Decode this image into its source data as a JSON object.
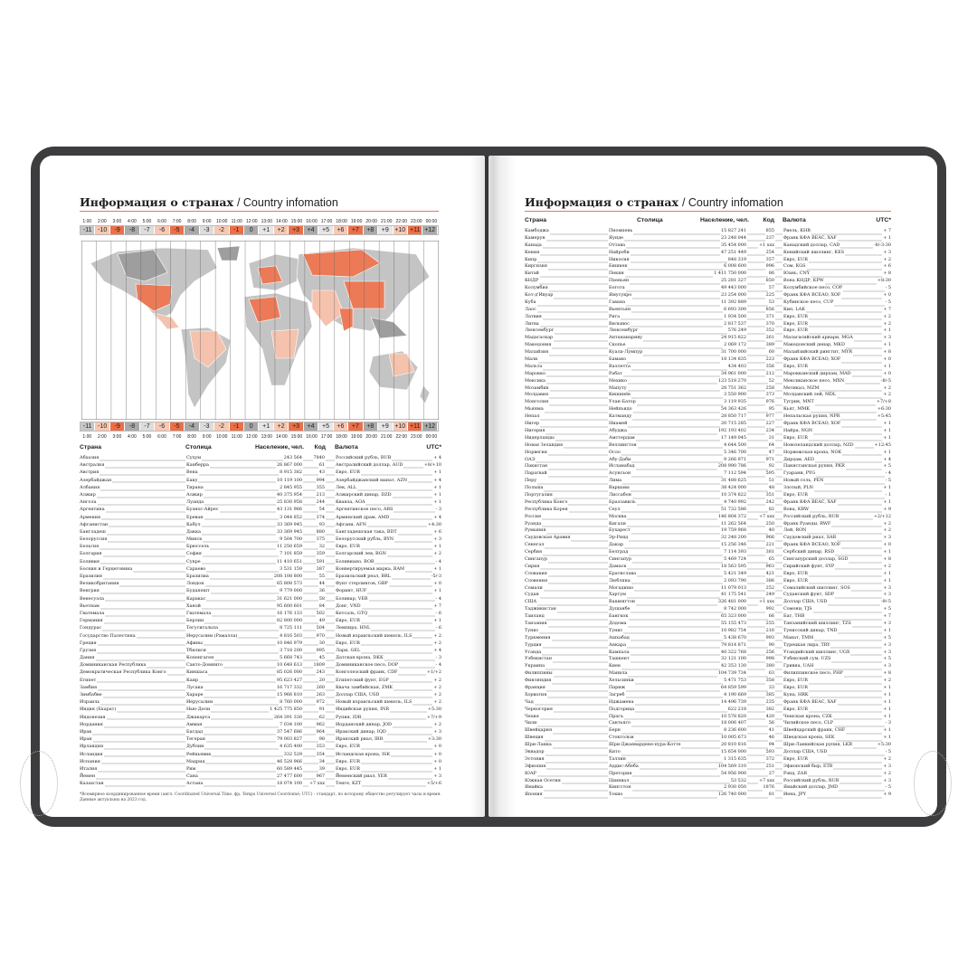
{
  "left_page": {
    "title_ru": "Информация о странах",
    "title_en": "/ Country infomation",
    "times": [
      "1:00",
      "2:00",
      "3:00",
      "4:00",
      "5:00",
      "6:00",
      "7:00",
      "8:00",
      "9:00",
      "10:00",
      "11:00",
      "12:00",
      "13:00",
      "14:00",
      "15:00",
      "16:00",
      "17:00",
      "18:00",
      "19:00",
      "20:00",
      "21:00",
      "22:00",
      "23:00",
      "00:00"
    ],
    "offsets": [
      "-11",
      "-10",
      "-9",
      "-8",
      "-7",
      "-6",
      "-5",
      "-4",
      "-3",
      "-2",
      "-1",
      "0",
      "+1",
      "+2",
      "+3",
      "+4",
      "+5",
      "+6",
      "+7",
      "+8",
      "+9",
      "+10",
      "+11",
      "+12"
    ],
    "offset_colors": [
      "#c6c6c6",
      "#f7c8b3",
      "#ec6f47",
      "#a9a9a9",
      "#dcdcdc",
      "#f7c8b3",
      "#ec6f47",
      "#a9a9a9",
      "#dcdcdc",
      "#f7c8b3",
      "#ec6f47",
      "#a9a9a9",
      "#e6e6e6",
      "#f7c8b3",
      "#ec6f47",
      "#a9a9a9",
      "#e6e6e6",
      "#f7c8b3",
      "#ec6f47",
      "#a9a9a9",
      "#e6e6e6",
      "#f7c8b3",
      "#ec6f47",
      "#a9a9a9"
    ],
    "map_colors": {
      "land_gray": "#c4c4c4",
      "land_dark": "#9e9e9e",
      "orange": "#ec7a57",
      "peach": "#f5c2ad"
    },
    "headers": {
      "country": "Страна",
      "capital": "Столица",
      "population": "Население, чел.",
      "code": "Код",
      "currency": "Валюта",
      "utc": "UTC*"
    },
    "rows": [
      [
        "Абхазия",
        "Сухум",
        "243 564",
        "7840",
        "Российский рубль, RUB",
        "+ 4"
      ],
      [
        "Австралия",
        "Канберра",
        "26 867 000",
        "61",
        "Австралийский доллар, AUD",
        "+8/+10"
      ],
      [
        "Австрия",
        "Вена",
        "8 915 382",
        "43",
        "Евро, EUR",
        "+ 1"
      ],
      [
        "Азербайджан",
        "Баку",
        "10 119 100",
        "994",
        "Азербайджанский манат, AZN",
        "+ 4"
      ],
      [
        "Албания",
        "Тирана",
        "2 845 955",
        "355",
        "Лек, ALL",
        "+ 1"
      ],
      [
        "Алжир",
        "Алжир",
        "40 375 954",
        "213",
        "Алжирский динар, DZD",
        "+ 1"
      ],
      [
        "Ангола",
        "Луанда",
        "25 830 958",
        "244",
        "Кванза, AOA",
        "+ 1"
      ],
      [
        "Аргентина",
        "Буэнос-Айрес",
        "43 131 966",
        "54",
        "Аргентинское песо, ARS",
        "- 3"
      ],
      [
        "Армения",
        "Ереван",
        "3 044 852",
        "374",
        "Армянский драм, AMD",
        "+ 4"
      ],
      [
        "Афганистан",
        "Кабул",
        "33 369 945",
        "93",
        "Афгани, AFN",
        "+4:30"
      ],
      [
        "Бангладеш",
        "Дакка",
        "33 369 945",
        "880",
        "Бангладешская така, BDT",
        "+ 6"
      ],
      [
        "Белоруссия",
        "Минск",
        "9 504 700",
        "375",
        "Белорусский рубль, BYN",
        "+ 3"
      ],
      [
        "Бельгия",
        "Брюссель",
        "11 250 659",
        "32",
        "Евро, EUR",
        "+ 1"
      ],
      [
        "Болгария",
        "София",
        "7 101 859",
        "359",
        "Болгарский лев, BGN",
        "+ 2"
      ],
      [
        "Боливия",
        "Сукре",
        "11 410 651",
        "591",
        "Боливиано, BOB",
        "- 4"
      ],
      [
        "Босния и Герцеговина",
        "Сараево",
        "3 531 159",
        "387",
        "Конвертируемая марка, BAM",
        "+ 1"
      ],
      [
        "Бразилия",
        "Бразилиа",
        "208 108 800",
        "55",
        "Бразильский реал, BRL",
        "-5/-3"
      ],
      [
        "Великобритания",
        "Лондон",
        "65 808 573",
        "44",
        "Фунт стерлингов, GBP",
        "+ 0"
      ],
      [
        "Венгрия",
        "Будапешт",
        "9 779 000",
        "36",
        "Форинт, HUF",
        "+ 1"
      ],
      [
        "Венесуэла",
        "Каракас",
        "31 621 000",
        "58",
        "Боливар, VEB",
        "- 4"
      ],
      [
        "Вьетнам",
        "Ханой",
        "95 600 601",
        "84",
        "Донг, VND",
        "+ 7"
      ],
      [
        "Гватемала",
        "Гватемала",
        "16 176 133",
        "502",
        "Кетсаль, GTQ",
        "- 6"
      ],
      [
        "Германия",
        "Берлин",
        "82 800 000",
        "49",
        "Евро, EUR",
        "+ 1"
      ],
      [
        "Гондурас",
        "Тегусигальпа",
        "8 725 111",
        "504",
        "Лемпира, HNL",
        "- 6"
      ],
      [
        "Государство Палестина",
        "Иерусалим (Рамалла)",
        "4 816 503",
        "970",
        "Новый израильский шекель, ILS",
        "+ 2"
      ],
      [
        "Греция",
        "Афины",
        "10 846 979",
        "30",
        "Евро, EUR",
        "+ 2"
      ],
      [
        "Грузия",
        "Тбилиси",
        "3 718 200",
        "995",
        "Лари, GEL",
        "+ 4"
      ],
      [
        "Дания",
        "Копенгаген",
        "5 668 743",
        "45",
        "Датская крона, DKK",
        "- 3"
      ],
      [
        "Доминиканская Республика",
        "Санто-Доминго",
        "10 648 613",
        "1809",
        "Доминиканское песо, DOP",
        "- 4"
      ],
      [
        "Демократическая Республика Конго",
        "Киншаса",
        "85 026 000",
        "243",
        "Конголезский франк, CDF",
        "+1/+2"
      ],
      [
        "Египет",
        "Каир",
        "95 623 427",
        "20",
        "Египетский фунт, EGP",
        "+ 2"
      ],
      [
        "Замбия",
        "Лусака",
        "16 717 332",
        "260",
        "Квача замбийская, ZMK",
        "+ 2"
      ],
      [
        "Зимбабве",
        "Хараре",
        "15 966 810",
        "263",
        "Доллар США, USD",
        "+ 2"
      ],
      [
        "Израиль",
        "Иерусалим",
        "8 760 000",
        "972",
        "Новый израильский шекель, ILS",
        "+ 2"
      ],
      [
        "Индия (Бхарат)",
        "Нью-Дели",
        "1 425 775 850",
        "91",
        "Индийская рупия, INR",
        "+5:30"
      ],
      [
        "Индонезия",
        "Джакарта",
        "264 391 330",
        "62",
        "Рупия, IDR",
        "+7/+9"
      ],
      [
        "Иордания",
        "Амман",
        "7 034 100",
        "962",
        "Иорданский динар, JOD",
        "+ 2"
      ],
      [
        "Ирак",
        "Багдад",
        "37 547 686",
        "964",
        "Иракский динар, IQD",
        "+ 3"
      ],
      [
        "Иран",
        "Тегеран",
        "79 003 827",
        "98",
        "Иранский риал, IRR",
        "+3:30"
      ],
      [
        "Ирландия",
        "Дублин",
        "4 635 400",
        "353",
        "Евро, EUR",
        "+ 0"
      ],
      [
        "Исландия",
        "Рейкьявик",
        "332 529",
        "354",
        "Исландская крона, ISK",
        "+ 0"
      ],
      [
        "Испания",
        "Мадрид",
        "46 528 966",
        "34",
        "Евро, EUR",
        "+ 0"
      ],
      [
        "Италия",
        "Рим",
        "60 589 445",
        "39",
        "Евро, EUR",
        "+ 1"
      ],
      [
        "Йемен",
        "Сана",
        "27 477 600",
        "967",
        "Йеменский риал, YER",
        "+ 3"
      ],
      [
        "Казахстан",
        "Астана",
        "18 074 100",
        "+7 xxx",
        "Тенге, KZT",
        "+5/+6"
      ]
    ],
    "footnote": "*Всемирное координированное время (англ. Coordinated Universal Time, фр. Temps Universel Coordonné; UTC) - стандарт, по которому общество регулирует часы и время. Данные актуальны на 2023 год."
  },
  "right_page": {
    "title_ru": "Информация о странах",
    "title_en": "/ Country infomation",
    "headers": {
      "country": "Страна",
      "capital": "Столица",
      "population": "Население, чел.",
      "code": "Код",
      "currency": "Валюта",
      "utc": "UTC*"
    },
    "rows": [
      [
        "Камбоджа",
        "Пномпень",
        "15 827 241",
        "855",
        "Риель, KHR",
        "+ 7"
      ],
      [
        "Камерун",
        "Яунде",
        "23 248 044",
        "237",
        "Франк КФА BEAC, XAF",
        "+ 1"
      ],
      [
        "Канада",
        "Оттава",
        "35 454 000",
        "+1 xxx",
        "Канадский доллар, CAD",
        "-8/-3:30"
      ],
      [
        "Кения",
        "Найроби",
        "47 251 449",
        "254",
        "Кенийский шиллинг, KES",
        "+ 3"
      ],
      [
        "Кипр",
        "Никосия",
        "848 319",
        "357",
        "Евро, EUR",
        "+ 2"
      ],
      [
        "Киргизия",
        "Бишкек",
        "6 008 600",
        "996",
        "Сом, KGS",
        "+ 6"
      ],
      [
        "Китай",
        "Пекин",
        "1 411 750 000",
        "86",
        "Юань, CNY",
        "+ 8"
      ],
      [
        "КНДР",
        "Пхеньян",
        "25 281 327",
        "850",
        "Вона КНДР, KPW",
        "+8:30"
      ],
      [
        "Колумбия",
        "Богота",
        "49 443 000",
        "57",
        "Колумбийское песо, COP",
        "- 5"
      ],
      [
        "Кот-д'Ивуар",
        "Ямусукро",
        "23 254 000",
        "225",
        "Франк КФА BCEAO, XOF",
        "+ 0"
      ],
      [
        "Куба",
        "Гавана",
        "11 392 889",
        "53",
        "Кубинское песо, CUP",
        "- 5"
      ],
      [
        "Лаос",
        "Вьентьян",
        "6 693 300",
        "856",
        "Кип, LAK",
        "+ 7"
      ],
      [
        "Латвия",
        "Рига",
        "1 934 500",
        "371",
        "Евро, EUR",
        "+ 2"
      ],
      [
        "Литва",
        "Вильнюс",
        "2 817 537",
        "370",
        "Евро, EUR",
        "+ 2"
      ],
      [
        "Люксембург",
        "Люксембург",
        "576 249",
        "352",
        "Евро, EUR",
        "+ 1"
      ],
      [
        "Мадагаскар",
        "Антананариву",
        "24 915 822",
        "261",
        "Малагасийский ариари, MGA",
        "+ 3"
      ],
      [
        "Македония",
        "Скопье",
        "2 069 172",
        "389",
        "Македонский денар, MKD",
        "+ 1"
      ],
      [
        "Малайзия",
        "Куала-Лумпур",
        "31 700 000",
        "60",
        "Малайзийский ринггит, MYR",
        "+ 8"
      ],
      [
        "Мали",
        "Бамако",
        "18 134 835",
        "223",
        "Франк КФА BCEAO, XOF",
        "+ 0"
      ],
      [
        "Мальта",
        "Валлетта",
        "434 403",
        "356",
        "Евро, EUR",
        "+ 1"
      ],
      [
        "Марокко",
        "Рабат",
        "34 961 000",
        "212",
        "Марокканский дирхам, MAD",
        "+ 0"
      ],
      [
        "Мексика",
        "Мехико",
        "123 518 270",
        "52",
        "Мексиканское песо, MXN",
        "-8/-5"
      ],
      [
        "Мозамбик",
        "Мапуту",
        "28 751 362",
        "258",
        "Метикал, MZM",
        "+ 2"
      ],
      [
        "Молдавия",
        "Кишинёв",
        "3 550 900",
        "373",
        "Молдавский лей, MDL",
        "+ 2"
      ],
      [
        "Монголия",
        "Улан-Батор",
        "3 119 935",
        "976",
        "Тугрик, MNT",
        "+7/+8"
      ],
      [
        "Мьянма",
        "Нейпьидо",
        "54 363 426",
        "95",
        "Кьят, MMK",
        "+6:30"
      ],
      [
        "Непал",
        "Катманду",
        "28 850 717",
        "977",
        "Непальская рупия, NPR",
        "+5:45"
      ],
      [
        "Нигер",
        "Ниамей",
        "20 715 285",
        "227",
        "Франк КФА BCEAO, XOF",
        "+ 1"
      ],
      [
        "Нигерия",
        "Абуджа",
        "192 193 402",
        "234",
        "Найра, NGN",
        "+ 1"
      ],
      [
        "Нидерланды",
        "Амстердам",
        "17 149 045",
        "31",
        "Евро, EUR",
        "+ 1"
      ],
      [
        "Новая Зеландия",
        "Веллингтон",
        "4 644 500",
        "64",
        "Новозеландский доллар, NZD",
        "+12:45"
      ],
      [
        "Норвегия",
        "Осло",
        "5 346 700",
        "47",
        "Норвежская крона, NOK",
        "+ 1"
      ],
      [
        "ОАЭ",
        "Абу-Даби",
        "9 266 971",
        "971",
        "Дирхам, AED",
        "+ 4"
      ],
      [
        "Пакистан",
        "Исламабад",
        "208 990 786",
        "92",
        "Пакистанская рупия, PKR",
        "+ 5"
      ],
      [
        "Парагвай",
        "Асунсьон",
        "7 112 594",
        "595",
        "Гуарани, PYG",
        "- 4"
      ],
      [
        "Перу",
        "Лима",
        "31 488 625",
        "51",
        "Новый соль, PEN",
        "- 5"
      ],
      [
        "Польша",
        "Варшава",
        "38 424 000",
        "48",
        "Злотый, PLN",
        "+ 1"
      ],
      [
        "Португалия",
        "Лиссабон",
        "10 374 822",
        "351",
        "Евро, EUR",
        "- 1"
      ],
      [
        "Республика Конго",
        "Браззавиль",
        "4 740 992",
        "242",
        "Франк КФА BEAC, XAF",
        "+ 1"
      ],
      [
        "Республика Корея",
        "Сеул",
        "51 732 586",
        "82",
        "Вона, KRW",
        "+ 9"
      ],
      [
        "Россия",
        "Москва",
        "146 804 372",
        "+7 xxx",
        "Российский рубль, RUB",
        "+2/+12"
      ],
      [
        "Руанда",
        "Кигали",
        "11 262 564",
        "250",
        "Франк Руанды, RWF",
        "+ 2"
      ],
      [
        "Румыния",
        "Бухарест",
        "19 759 968",
        "40",
        "Лей, RON",
        "+ 2"
      ],
      [
        "Саудовская Аравия",
        "Эр-Рияд",
        "32 248 200",
        "966",
        "Саудовский риал, SAR",
        "+ 3"
      ],
      [
        "Сенегал",
        "Дакар",
        "15 256 346",
        "221",
        "Франк КФА BCEAO, XOF",
        "+ 0"
      ],
      [
        "Сербия",
        "Белград",
        "7 114 393",
        "381",
        "Сербский динар, RSD",
        "+ 1"
      ],
      [
        "Сингапур",
        "Сингапур",
        "5 469 724",
        "65",
        "Сингапурский доллар, SGD",
        "+ 8"
      ],
      [
        "Сирия",
        "Дамаск",
        "18 563 595",
        "963",
        "Сирийский фунт, SYP",
        "+ 2"
      ],
      [
        "Словакия",
        "Братислава",
        "5 421 349",
        "421",
        "Евро, EUR",
        "+ 1"
      ],
      [
        "Словения",
        "Любляна",
        "2 093 790",
        "386",
        "Евро, EUR",
        "+ 1"
      ],
      [
        "Сомали",
        "Могадишо",
        "11 079 013",
        "252",
        "Сомалийский шиллинг, SOS",
        "+ 3"
      ],
      [
        "Судан",
        "Хартум",
        "41 175 541",
        "249",
        "Суданский фунт, SDP",
        "+ 3"
      ],
      [
        "США",
        "Вашингтон",
        "326 481 000",
        "+1 xxx",
        "Доллар США, USD",
        "-9/-5"
      ],
      [
        "Таджикистан",
        "Душанбе",
        "8 742 000",
        "992",
        "Сомони, TJS",
        "+ 5"
      ],
      [
        "Таиланд",
        "Бангкок",
        "65 323 000",
        "66",
        "Бат, THB",
        "+ 7"
      ],
      [
        "Танзания",
        "Додома",
        "55 155 473",
        "255",
        "Танзанийский шиллинг, TZS",
        "+ 3"
      ],
      [
        "Тунис",
        "Тунис",
        "10 982 754",
        "216",
        "Тунисский динар, TND",
        "+ 1"
      ],
      [
        "Туркмения",
        "Ашхабад",
        "5 438 670",
        "993",
        "Манат, TMM",
        "+ 5"
      ],
      [
        "Турция",
        "Анкара",
        "79 814 871",
        "90",
        "Турецкая лира, TRY",
        "+ 3"
      ],
      [
        "Уганда",
        "Кампала",
        "40 322 768",
        "256",
        "Угандийский шиллинг, UGX",
        "+ 3"
      ],
      [
        "Узбекистан",
        "Ташкент",
        "32 121 100",
        "998",
        "Узбекский сум, UZS",
        "+ 5"
      ],
      [
        "Украина",
        "Киев",
        "42 353 130",
        "380",
        "Гривна, UAH",
        "+ 3"
      ],
      [
        "Филиппины",
        "Манила",
        "104 739 734",
        "63",
        "Филиппинское песо, PHP",
        "+ 8"
      ],
      [
        "Финляндия",
        "Хельсинки",
        "5 471 753",
        "358",
        "Евро, EUR",
        "+ 2"
      ],
      [
        "Франция",
        "Париж",
        "64 859 599",
        "33",
        "Евро, EUR",
        "+ 1"
      ],
      [
        "Хорватия",
        "Загреб",
        "4 190 669",
        "385",
        "Куна, HRK",
        "+ 1"
      ],
      [
        "Чад",
        "Нджамена",
        "14 496 739",
        "235",
        "Франк КФА BEAC, XAF",
        "+ 1"
      ],
      [
        "Черногория",
        "Подгорица",
        "622 218",
        "382",
        "Евро, EUR",
        "+ 1"
      ],
      [
        "Чехия",
        "Прага",
        "10 578 820",
        "420",
        "Чешская крона, CZK",
        "+ 1"
      ],
      [
        "Чили",
        "Сантьяго",
        "18 006 407",
        "56",
        "Чилийское песо, CLP",
        "- 3"
      ],
      [
        "Швейцария",
        "Берн",
        "8 236 600",
        "41",
        "Швейцарский франк, CHF",
        "+ 1"
      ],
      [
        "Швеция",
        "Стокгольм",
        "10 005 673",
        "46",
        "Шведская крона, SEK",
        "+ 1"
      ],
      [
        "Шри-Ланка",
        "Шри-Джаявардене-пура-Котте",
        "20 810 816",
        "94",
        "Шри-Ланкийская рупия, LKR",
        "+5:30"
      ],
      [
        "Эквадор",
        "Кито",
        "15 654 000",
        "593",
        "Доллар США, USD",
        "- 5"
      ],
      [
        "Эстония",
        "Таллин",
        "1 315 635",
        "372",
        "Евро, EUR",
        "+ 2"
      ],
      [
        "Эфиопия",
        "Аддис-Абеба",
        "104 569 310",
        "251",
        "Эфиопский быр, ETB",
        "+ 3"
      ],
      [
        "ЮАР",
        "Претория",
        "54 956 900",
        "27",
        "Рэнд, ZAR",
        "+ 2"
      ],
      [
        "Южная Осетия",
        "Цхинвал",
        "53 532",
        "+7 xxx",
        "Российский рубль, RUB",
        "+ 3"
      ],
      [
        "Ямайка",
        "Кингстон",
        "2 930 050",
        "1876",
        "Ямайский доллар, JMD",
        "- 5"
      ],
      [
        "Япония",
        "Токио",
        "126 740 000",
        "81",
        "Иена, JPY",
        "+ 9"
      ]
    ]
  }
}
